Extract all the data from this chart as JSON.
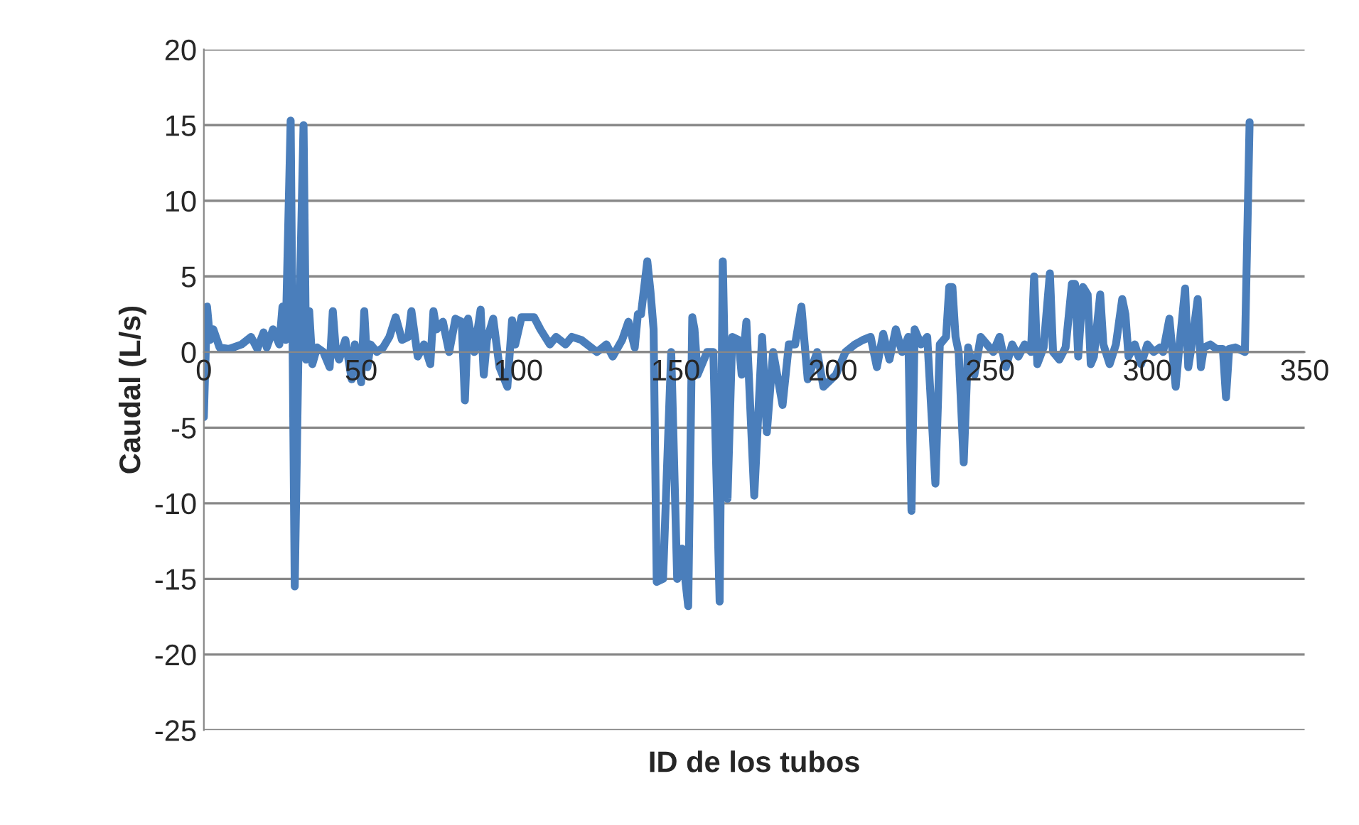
{
  "chart_data": {
    "type": "line",
    "xlabel": "ID de los tubos",
    "ylabel": "Caudal (L/s)",
    "xlim": [
      0,
      350
    ],
    "xticks": [
      0,
      50,
      100,
      150,
      200,
      250,
      300,
      350
    ],
    "ylim": [
      -25,
      20
    ],
    "yticks": [
      -25,
      -20,
      -15,
      -10,
      -5,
      0,
      5,
      10,
      15,
      20
    ],
    "grid": "y",
    "line_style": "solid",
    "series": [
      {
        "color": "#4a7ebb",
        "x": [
          0,
          1,
          2,
          3,
          5,
          8,
          12,
          15,
          17,
          19,
          20,
          22,
          24,
          25,
          26,
          27.6,
          28.9,
          30,
          31.7,
          32.5,
          33.5,
          34.5,
          36,
          38,
          40,
          41,
          42,
          43,
          45,
          47,
          48,
          50,
          51,
          52,
          53,
          55,
          57,
          59,
          61,
          63,
          65,
          66,
          68,
          70,
          72,
          73,
          74,
          76,
          78,
          80,
          82,
          83,
          84,
          86,
          88,
          89,
          90,
          92,
          94,
          96.5,
          98,
          99,
          101,
          103,
          105,
          107,
          110,
          112,
          115,
          117,
          120,
          125,
          128,
          130,
          133,
          135,
          137,
          138,
          139,
          141,
          142,
          143,
          144,
          146,
          148.6,
          150.5,
          152,
          154,
          155.3,
          156,
          157,
          160,
          162,
          164,
          165,
          166.5,
          168,
          170,
          171,
          172.5,
          175,
          177.5,
          179,
          181,
          184,
          186,
          188,
          190,
          192,
          195,
          197,
          201,
          204,
          207,
          209.6,
          212,
          214,
          216,
          218,
          220,
          222,
          224,
          225,
          226,
          228,
          230,
          232.6,
          234,
          236,
          237,
          238,
          239,
          240,
          241.6,
          243,
          245,
          247,
          249,
          251,
          253,
          255,
          257,
          259,
          261,
          263,
          264,
          265,
          267,
          269,
          270,
          272,
          274,
          276,
          277,
          278,
          279.5,
          281,
          282,
          283,
          285,
          286,
          288,
          290,
          292,
          293,
          294,
          296,
          298,
          300,
          302,
          304,
          305,
          307,
          309,
          310,
          312,
          313,
          314,
          316,
          317,
          318,
          320,
          322,
          324,
          325,
          326,
          328,
          331,
          332.5
        ],
        "values": [
          -4.3,
          3,
          0.8,
          1.5,
          0.3,
          0.2,
          0.5,
          1,
          0.2,
          1.3,
          0.3,
          1.5,
          0.5,
          3,
          0.8,
          15.3,
          -15.5,
          -1,
          15,
          -0.5,
          2.7,
          -0.8,
          0.3,
          0,
          -1,
          2.7,
          0,
          -0.5,
          0.8,
          -1.8,
          0.5,
          -2,
          2.7,
          -1,
          0.5,
          0,
          0.3,
          1,
          2.3,
          0.8,
          1,
          2.7,
          -0.3,
          0.5,
          -0.8,
          2.7,
          1.5,
          2,
          0,
          2.2,
          2,
          -3.2,
          2.2,
          0,
          2.8,
          -1.5,
          0.8,
          2.2,
          -1,
          -2.3,
          2.1,
          0.5,
          2.3,
          2.3,
          2.3,
          1.5,
          0.5,
          1,
          0.5,
          1,
          0.8,
          0,
          0.5,
          -0.3,
          0.8,
          2,
          0.3,
          2.5,
          2.5,
          6,
          4,
          1.5,
          -15.2,
          -15,
          0,
          -15,
          -13,
          -16.8,
          2.3,
          1.5,
          -1.5,
          0,
          0,
          -16.5,
          6,
          -9.7,
          1,
          0.8,
          -1.5,
          2,
          -9.5,
          1,
          -5.3,
          0,
          -3.5,
          0.5,
          0.5,
          3,
          -1.8,
          0,
          -2.3,
          -1.5,
          0,
          0.5,
          0.8,
          1,
          -1,
          1.2,
          -0.5,
          1.5,
          0,
          1,
          -10.5,
          1.5,
          0.5,
          1,
          -8.7,
          0.5,
          1,
          4.3,
          4.3,
          1,
          0,
          -7.3,
          0.3,
          -1.5,
          1,
          0.5,
          0,
          1,
          -1,
          0.5,
          -0.3,
          0.5,
          0,
          5,
          -0.8,
          0.3,
          5.2,
          0,
          -0.5,
          0.3,
          4.5,
          4.5,
          -0.3,
          4.3,
          3.8,
          -0.8,
          -0.3,
          3.8,
          0.5,
          -0.8,
          0.5,
          3.5,
          2.5,
          -0.3,
          0.5,
          -0.8,
          0.5,
          0,
          0.3,
          0,
          2.2,
          -2.3,
          0,
          4.2,
          -1,
          0.3,
          3.5,
          -1,
          0.3,
          0.5,
          0.2,
          0.2,
          -3,
          0.2,
          0.3,
          0,
          15.2
        ]
      }
    ]
  }
}
